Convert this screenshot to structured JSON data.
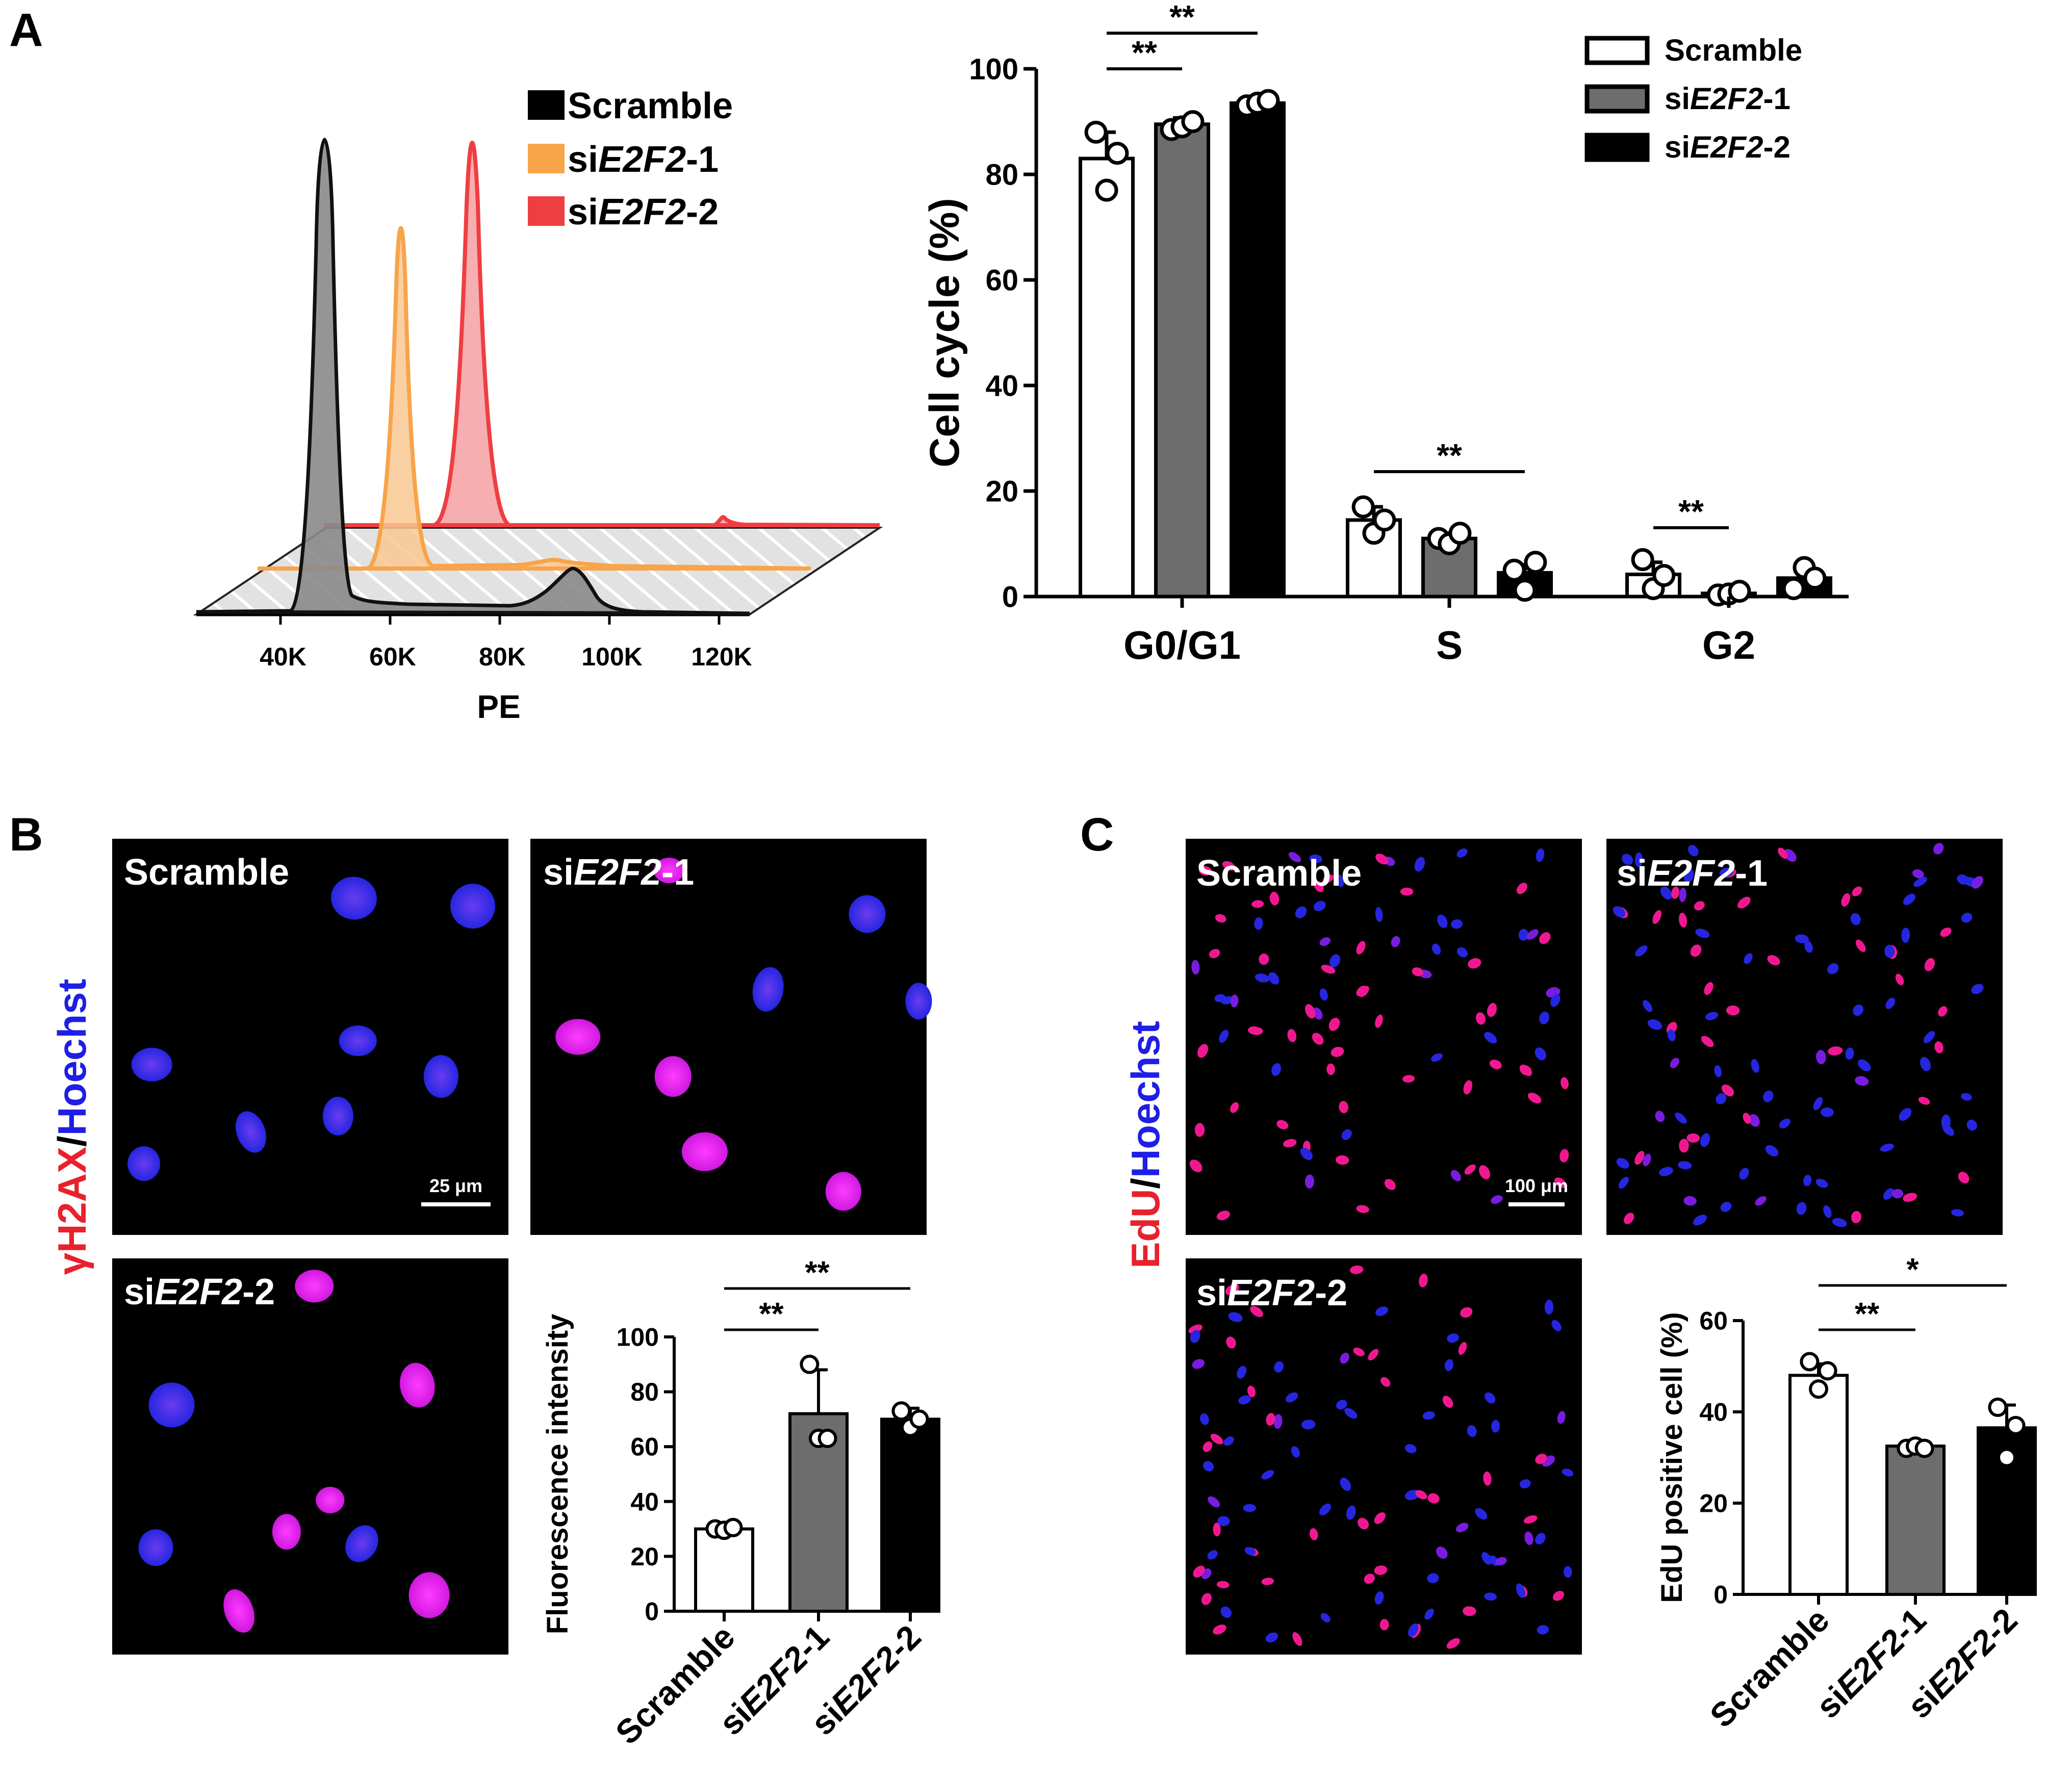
{
  "colors": {
    "scramble_hist": "#808080",
    "sie2f2_1_hist": "#F7A44A",
    "sie2f2_2_hist": "#EF3E42",
    "scramble_bar": "#FFFFFF",
    "sie2f2_1_bar": "#6D6D6D",
    "sie2f2_2_bar": "#000000",
    "red_text": "#E8212C",
    "blue_text": "#1E1EE6",
    "nucleus_blue": "#2626E0",
    "nucleus_magenta": "#EC1CEC",
    "nucleus_pink": "#F01890",
    "nucleus_violet": "#7A1CE0"
  },
  "panels": {
    "A": {
      "letter": "A",
      "histogram": {
        "xlabel": "PE",
        "ticks": [
          "40K",
          "60K",
          "80K",
          "100K",
          "120K"
        ],
        "legend": [
          {
            "prefix": "",
            "gene": "",
            "suffix": "Scramble"
          },
          {
            "prefix": "si",
            "gene": "E2F2",
            "suffix": "-1"
          },
          {
            "prefix": "si",
            "gene": "E2F2",
            "suffix": "-2"
          }
        ]
      }
    },
    "B": {
      "letter": "B",
      "side_label": {
        "red": "γH2AX",
        "sep": "/",
        "blue": "Hoechst"
      },
      "images": [
        {
          "prefix": "",
          "gene": "",
          "suffix": "Scramble"
        },
        {
          "prefix": "si",
          "gene": "E2F2",
          "suffix": "-1"
        },
        {
          "prefix": "si",
          "gene": "E2F2",
          "suffix": "-2"
        }
      ],
      "scale_bar": "25 μm"
    },
    "C": {
      "letter": "C",
      "side_label": {
        "red": "EdU",
        "sep": "/",
        "blue": "Hoechst"
      },
      "images": [
        {
          "prefix": "",
          "gene": "",
          "suffix": "Scramble"
        },
        {
          "prefix": "si",
          "gene": "E2F2",
          "suffix": "-1"
        },
        {
          "prefix": "si",
          "gene": "E2F2",
          "suffix": "-2"
        }
      ],
      "scale_bar": "100 μm"
    }
  },
  "chart_data": [
    {
      "type": "bar",
      "panel": "A",
      "title": "",
      "ylabel": "Cell cycle (%)",
      "xlabel": "",
      "ylim": [
        0,
        100
      ],
      "yticks": [
        0,
        20,
        40,
        60,
        80,
        100
      ],
      "categories": [
        "G0/G1",
        "S",
        "G2"
      ],
      "legend": [
        {
          "prefix": "",
          "gene": "",
          "suffix": "Scramble"
        },
        {
          "prefix": "si",
          "gene": "E2F2",
          "suffix": "-1"
        },
        {
          "prefix": "si",
          "gene": "E2F2",
          "suffix": "-2"
        }
      ],
      "series": [
        {
          "name": "Scramble",
          "values": [
            83,
            14.5,
            4.2
          ],
          "errors": [
            5,
            2.5,
            2.3
          ],
          "points": [
            [
              88,
              77,
              84
            ],
            [
              17,
              12,
              14.5
            ],
            [
              7,
              1.5,
              4
            ]
          ]
        },
        {
          "name": "siE2F2-1",
          "values": [
            89.5,
            11,
            0.6
          ],
          "errors": [
            1.2,
            1,
            0.5
          ],
          "points": [
            [
              88.5,
              89,
              90
            ],
            [
              11,
              10,
              12
            ],
            [
              0.3,
              0.5,
              1
            ]
          ]
        },
        {
          "name": "siE2F2-2",
          "values": [
            93.5,
            4.5,
            3.5
          ],
          "errors": [
            0.6,
            1.5,
            2
          ],
          "points": [
            [
              93,
              93.5,
              94
            ],
            [
              5,
              1.2,
              6.5
            ],
            [
              1.5,
              5.5,
              3.5
            ]
          ]
        }
      ],
      "significance": [
        {
          "label": "**",
          "category": "G0/G1",
          "from_series": 0,
          "to_series": 2
        },
        {
          "label": "**",
          "category": "G0/G1",
          "from_series": 0,
          "to_series": 1
        },
        {
          "label": "**",
          "category": "S",
          "from_series": 0,
          "to_series": 2
        },
        {
          "label": "**",
          "category": "G2",
          "from_series": 0,
          "to_series": 1
        }
      ]
    },
    {
      "type": "bar",
      "panel": "B",
      "ylabel": "Fluorescence intensity",
      "ylim": [
        0,
        100
      ],
      "yticks": [
        0,
        20,
        40,
        60,
        80,
        100
      ],
      "categories": [
        {
          "prefix": "",
          "gene": "",
          "suffix": "Scramble"
        },
        {
          "prefix": "si",
          "gene": "E2F2",
          "suffix": "-1"
        },
        {
          "prefix": "si",
          "gene": "E2F2",
          "suffix": "-2"
        }
      ],
      "values": [
        30,
        72,
        70
      ],
      "errors": [
        1,
        16,
        4
      ],
      "points": [
        [
          30,
          29.5,
          30.5
        ],
        [
          90,
          63,
          63
        ],
        [
          73,
          67,
          70
        ]
      ],
      "significance": [
        {
          "label": "**",
          "from": 0,
          "to": 2
        },
        {
          "label": "**",
          "from": 0,
          "to": 1
        }
      ]
    },
    {
      "type": "bar",
      "panel": "C",
      "ylabel": "EdU positive cell (%)",
      "ylim": [
        0,
        60
      ],
      "yticks": [
        0,
        20,
        40,
        60
      ],
      "categories": [
        {
          "prefix": "",
          "gene": "",
          "suffix": "Scramble"
        },
        {
          "prefix": "si",
          "gene": "E2F2",
          "suffix": "-1"
        },
        {
          "prefix": "si",
          "gene": "E2F2",
          "suffix": "-2"
        }
      ],
      "values": [
        48,
        32.5,
        36.5
      ],
      "errors": [
        2.5,
        1.2,
        5
      ],
      "points": [
        [
          51,
          45,
          49
        ],
        [
          32,
          32.5,
          32
        ],
        [
          41,
          30,
          37
        ]
      ],
      "significance": [
        {
          "label": "*",
          "from": 0,
          "to": 2
        },
        {
          "label": "**",
          "from": 0,
          "to": 1
        }
      ]
    }
  ]
}
